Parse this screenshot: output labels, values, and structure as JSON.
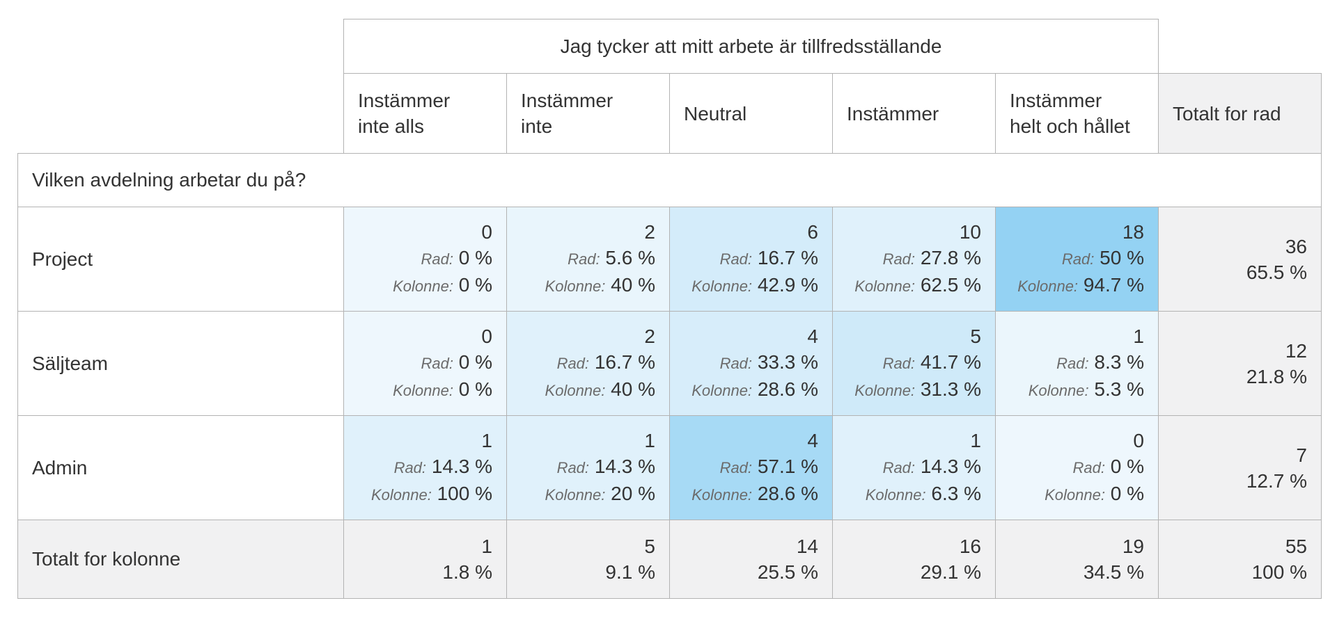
{
  "question_column": "Jag tycker att mitt arbete är tillfredsställande",
  "question_row": "Vilken avdelning arbetar du på?",
  "columns": [
    {
      "line1": "Instämmer",
      "line2": "inte alls"
    },
    {
      "line1": "Instämmer",
      "line2": "inte"
    },
    {
      "line1": "Neutral",
      "line2": ""
    },
    {
      "line1": "Instämmer",
      "line2": ""
    },
    {
      "line1": "Instämmer",
      "line2": "helt och hållet"
    }
  ],
  "total_row_header": "Totalt for rad",
  "total_col_header": "Totalt for kolonne",
  "labels": {
    "row_pct": "Rad:",
    "col_pct": "Kolonne:"
  },
  "rows": [
    {
      "name": "Project",
      "cells": [
        {
          "n": "0",
          "rad": "0 %",
          "kol": "0 %",
          "shade": 0.05
        },
        {
          "n": "2",
          "rad": "5.6 %",
          "kol": "40 %",
          "shade": 0.11
        },
        {
          "n": "6",
          "rad": "16.7 %",
          "kol": "42.9 %",
          "shade": 0.33
        },
        {
          "n": "10",
          "rad": "27.8 %",
          "kol": "62.5 %",
          "shade": 0.2
        },
        {
          "n": "18",
          "rad": "50 %",
          "kol": "94.7 %",
          "shade": 1.0
        }
      ],
      "total": {
        "n": "36",
        "pct": "65.5 %"
      }
    },
    {
      "name": "Säljteam",
      "cells": [
        {
          "n": "0",
          "rad": "0 %",
          "kol": "0 %",
          "shade": 0.05
        },
        {
          "n": "2",
          "rad": "16.7 %",
          "kol": "40 %",
          "shade": 0.2
        },
        {
          "n": "4",
          "rad": "33.3 %",
          "kol": "28.6 %",
          "shade": 0.3
        },
        {
          "n": "5",
          "rad": "41.7 %",
          "kol": "31.3 %",
          "shade": 0.38
        },
        {
          "n": "1",
          "rad": "8.3 %",
          "kol": "5.3 %",
          "shade": 0.08
        }
      ],
      "total": {
        "n": "12",
        "pct": "21.8 %"
      }
    },
    {
      "name": "Admin",
      "cells": [
        {
          "n": "1",
          "rad": "14.3 %",
          "kol": "100 %",
          "shade": 0.2
        },
        {
          "n": "1",
          "rad": "14.3 %",
          "kol": "20 %",
          "shade": 0.2
        },
        {
          "n": "4",
          "rad": "57.1 %",
          "kol": "28.6 %",
          "shade": 0.8
        },
        {
          "n": "1",
          "rad": "14.3 %",
          "kol": "6.3 %",
          "shade": 0.2
        },
        {
          "n": "0",
          "rad": "0 %",
          "kol": "0 %",
          "shade": 0.05
        }
      ],
      "total": {
        "n": "7",
        "pct": "12.7 %"
      }
    }
  ],
  "column_totals": [
    {
      "n": "1",
      "pct": "1.8 %"
    },
    {
      "n": "5",
      "pct": "9.1 %"
    },
    {
      "n": "14",
      "pct": "25.5 %"
    },
    {
      "n": "16",
      "pct": "29.1 %"
    },
    {
      "n": "19",
      "pct": "34.5 %"
    }
  ],
  "grand_total": {
    "n": "55",
    "pct": "100 %"
  },
  "colors": {
    "shade_light": "#f3f9fd",
    "shade_dark": "#94d2f3",
    "total_bg": "#f1f1f2",
    "border": "#b3b3b3"
  }
}
